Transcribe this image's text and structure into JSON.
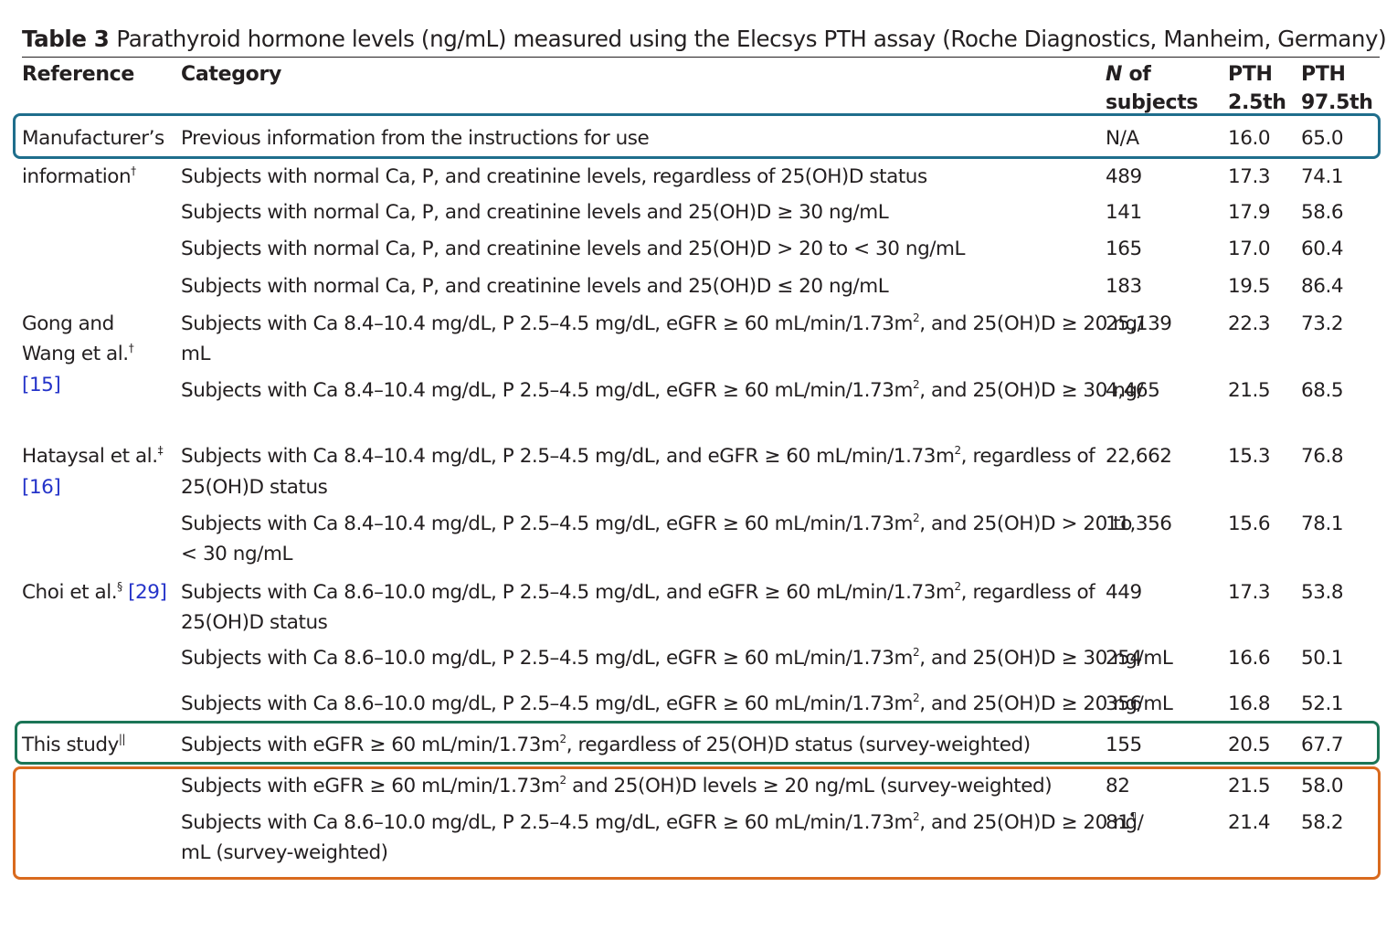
{
  "caption": {
    "label": "Table 3",
    "text": "Parathyroid hormone levels (ng/mL) measured using the Elecsys PTH assay (Roche Diagnostics, Manheim, Germany)"
  },
  "headers": {
    "reference": "Reference",
    "category": "Category",
    "n_of": "of",
    "n_italic": "N",
    "n_subjects": "subjects",
    "pth1_line1": "PTH",
    "pth1_line2": "2.5th",
    "pth2_line1": "PTH",
    "pth2_line2": "97.5th"
  },
  "references": {
    "manufacturer_line1": "Manufacturer’s",
    "manufacturer_line2": "information",
    "manufacturer_mark": "†",
    "gong_line1": "Gong and",
    "gong_line2": "Wang et al.",
    "gong_mark": "†",
    "gong_cite": "[15]",
    "hataysal_line1": "Hataysal et al.",
    "hataysal_mark": "‡",
    "hataysal_cite": "[16]",
    "choi_name": "Choi et al.",
    "choi_mark": "§",
    "choi_cite": "[29]",
    "this_study": "This study",
    "this_study_mark": "||"
  },
  "rows": [
    {
      "category": "Previous information from the instructions for use",
      "n": "N/A",
      "p25": "16.0",
      "p975": "65.0"
    },
    {
      "category": "Subjects with normal Ca, P, and creatinine levels, regardless of 25(OH)D status",
      "n": "489",
      "p25": "17.3",
      "p975": "74.1"
    },
    {
      "category": "Subjects with normal Ca, P, and creatinine levels and 25(OH)D ≥ 30 ng/mL",
      "n": "141",
      "p25": "17.9",
      "p975": "58.6"
    },
    {
      "category": "Subjects with normal Ca, P, and creatinine levels and 25(OH)D > 20 to < 30 ng/mL",
      "n": "165",
      "p25": "17.0",
      "p975": "60.4"
    },
    {
      "category": "Subjects with normal Ca, P, and creatinine levels and 25(OH)D ≤ 20 ng/mL",
      "n": "183",
      "p25": "19.5",
      "p975": "86.4"
    },
    {
      "category_a": "Subjects with Ca 8.4–10.4 mg/dL, P 2.5–4.5 mg/dL, eGFR ≥ 60 mL/min/1.73m",
      "category_b": ", and 25(OH)D ≥ 20 ng/",
      "category_line2": "mL",
      "n": "25,139",
      "p25": "22.3",
      "p975": "73.2"
    },
    {
      "category_a": "Subjects with Ca 8.4–10.4 mg/dL, P 2.5–4.5 mg/dL, eGFR ≥ 60 mL/min/1.73m",
      "category_b": ", and 25(OH)D ≥ 30 ng/",
      "n": "4,465",
      "p25": "21.5",
      "p975": "68.5"
    },
    {
      "category_a": "Subjects with Ca 8.4–10.4 mg/dL, P 2.5–4.5 mg/dL, and eGFR ≥ 60 mL/min/1.73m",
      "category_b": ", regardless of",
      "category_line2": "25(OH)D status",
      "n": "22,662",
      "p25": "15.3",
      "p975": "76.8"
    },
    {
      "category_a": "Subjects with Ca 8.4–10.4 mg/dL, P 2.5–4.5 mg/dL, eGFR ≥ 60 mL/min/1.73m",
      "category_b": ", and 25(OH)D > 20 to",
      "category_line2": "< 30 ng/mL",
      "n": "11,356",
      "p25": "15.6",
      "p975": "78.1"
    },
    {
      "category_a": "Subjects with Ca 8.6–10.0 mg/dL, P 2.5–4.5 mg/dL, and eGFR ≥ 60 mL/min/1.73m",
      "category_b": ", regardless of",
      "category_line2": "25(OH)D status",
      "n": "449",
      "p25": "17.3",
      "p975": "53.8"
    },
    {
      "category_a": "Subjects with Ca 8.6–10.0 mg/dL, P 2.5–4.5 mg/dL, eGFR ≥ 60 mL/min/1.73m",
      "category_b": ", and 25(OH)D ≥ 30 ng/mL",
      "n": "254",
      "p25": "16.6",
      "p975": "50.1"
    },
    {
      "category_a": "Subjects with Ca 8.6–10.0 mg/dL, P 2.5–4.5 mg/dL, eGFR ≥ 60 mL/min/1.73m",
      "category_b": ", and 25(OH)D ≥ 20 ng/mL",
      "n": "356",
      "p25": "16.8",
      "p975": "52.1"
    },
    {
      "category_a": "Subjects with eGFR ≥ 60 mL/min/1.73m",
      "category_b": ", regardless of 25(OH)D status (survey-weighted)",
      "n": "155",
      "p25": "20.5",
      "p975": "67.7"
    },
    {
      "category_a": "Subjects with eGFR ≥ 60 mL/min/1.73m",
      "category_b": " and 25(OH)D levels ≥ 20 ng/mL (survey-weighted)",
      "n": "82",
      "p25": "21.5",
      "p975": "58.0"
    },
    {
      "category_a": "Subjects with Ca 8.6–10.0 mg/dL, P 2.5–4.5 mg/dL, eGFR ≥ 60 mL/min/1.73m",
      "category_b": ", and 25(OH)D ≥ 20 ng/",
      "category_line2": "mL (survey-weighted)",
      "n": "81",
      "n_mark": "¶",
      "p25": "21.4",
      "p975": "58.2"
    }
  ],
  "superscript_two": "2",
  "highlight_colors": {
    "manufacturer_box": "#1f6e8c",
    "this_study_box": "#1b7556",
    "survey_rows_box": "#d96a1e"
  }
}
